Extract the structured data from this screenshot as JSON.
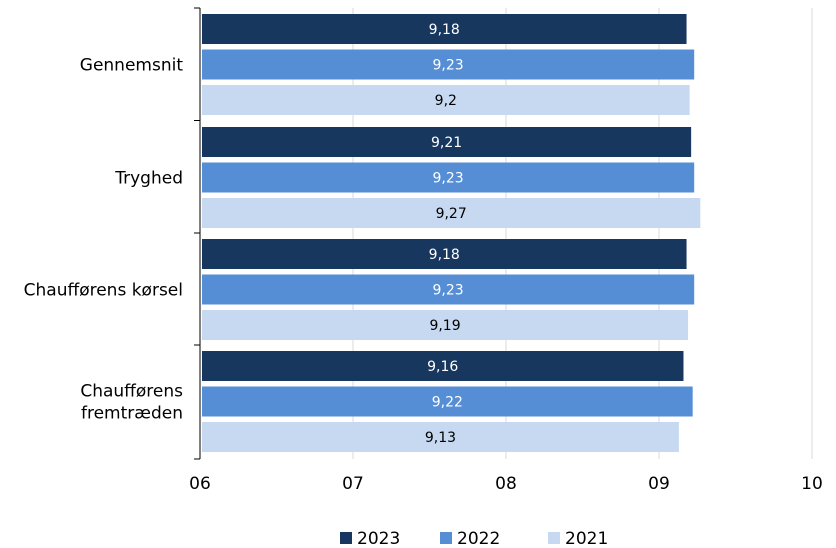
{
  "chart_data": {
    "type": "bar",
    "orientation": "horizontal",
    "categories": [
      "Gennemsnit",
      "Tryghed",
      "Chaufførens kørsel",
      "Chaufførens fremtræden"
    ],
    "category_lines": [
      [
        "Gennemsnit"
      ],
      [
        "Tryghed"
      ],
      [
        "Chaufførens kørsel"
      ],
      [
        "Chaufførens",
        "fremtræden"
      ]
    ],
    "series": [
      {
        "name": "2023",
        "color": "#17375E",
        "label_color": "#FFFFFF",
        "values": [
          9.18,
          9.21,
          9.18,
          9.16
        ],
        "labels": [
          "9,18",
          "9,21",
          "9,18",
          "9,16"
        ]
      },
      {
        "name": "2022",
        "color": "#558ED5",
        "label_color": "#FFFFFF",
        "values": [
          9.23,
          9.23,
          9.23,
          9.22
        ],
        "labels": [
          "9,23",
          "9,23",
          "9,23",
          "9,22"
        ]
      },
      {
        "name": "2021",
        "color": "#C6D9F1",
        "label_color": "#000000",
        "values": [
          9.2,
          9.27,
          9.19,
          9.13
        ],
        "labels": [
          "9,2",
          "9,27",
          "9,19",
          "9,13"
        ]
      }
    ],
    "xlim": [
      6,
      10
    ],
    "xticks": [
      6,
      7,
      8,
      9,
      10
    ],
    "xtick_labels": [
      "06",
      "07",
      "08",
      "09",
      "10"
    ],
    "grid": true,
    "legend_position": "bottom",
    "title": "",
    "xlabel": "",
    "ylabel": ""
  }
}
